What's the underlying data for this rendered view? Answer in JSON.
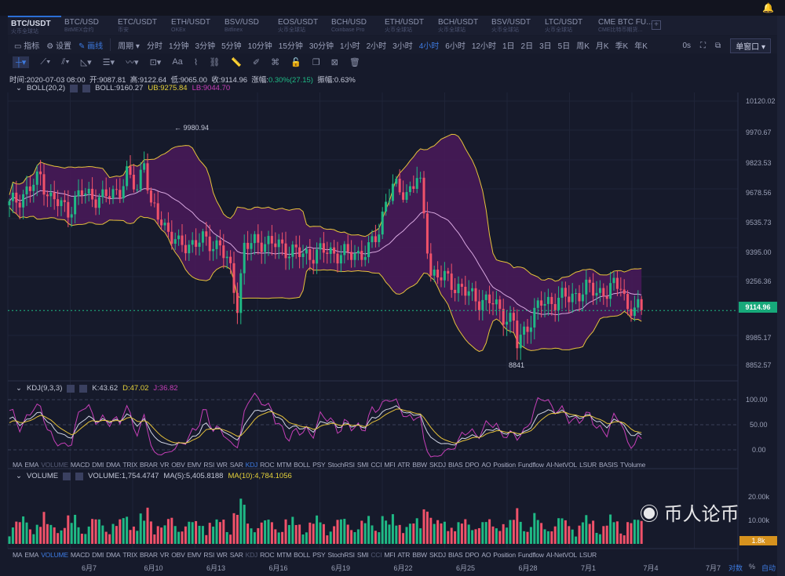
{
  "tabs": [
    {
      "name": "BTC/USDT",
      "source": "火币全球站"
    },
    {
      "name": "BTC/USD",
      "source": "BitMEX合约"
    },
    {
      "name": "ETC/USDT",
      "source": "币安"
    },
    {
      "name": "ETH/USDT",
      "source": "OKEx"
    },
    {
      "name": "BSV/USD",
      "source": "Bitfinex"
    },
    {
      "name": "EOS/USDT",
      "source": "火币全球站"
    },
    {
      "name": "BCH/USD",
      "source": "Coinbase Pro"
    },
    {
      "name": "ETH/USDT",
      "source": "火币全球站"
    },
    {
      "name": "BCH/USDT",
      "source": "火币全球站"
    },
    {
      "name": "BSV/USDT",
      "source": "火币全球站"
    },
    {
      "name": "LTC/USDT",
      "source": "火币全球站"
    },
    {
      "name": "CME BTC FU...",
      "source": "CME比特币期货..."
    }
  ],
  "toolbar": {
    "indicator": "指标",
    "settings": "设置",
    "draw": "画线",
    "period": "周期",
    "periods": [
      "分时",
      "1分钟",
      "3分钟",
      "5分钟",
      "10分钟",
      "15分钟",
      "30分钟",
      "1小时",
      "2小时",
      "3小时",
      "4小时",
      "6小时",
      "12小时",
      "1日",
      "2日",
      "3日",
      "5日",
      "周K",
      "月K",
      "季K",
      "年K"
    ],
    "active_period": "4小时",
    "countdown": "0s",
    "window": "单窗口"
  },
  "info": {
    "time": "时间:2020-07-03 08:00",
    "open": "开:9087.81",
    "high": "高:9122.64",
    "low": "低:9065.00",
    "close": "收:9114.96",
    "change_label": "涨幅:",
    "change": "0.30%(27.15)",
    "amplitude": "振幅:0.63%"
  },
  "boll": {
    "name": "BOLL(20,2)",
    "mid": "BOLL:9160.27",
    "ub": "UB:9275.84",
    "lb": "LB:9044.70"
  },
  "kdj": {
    "name": "KDJ(9,3,3)",
    "k": "K:43.62",
    "d": "D:47.02",
    "j": "J:36.82",
    "ticks": [
      "100.00",
      "50.00",
      "0.00"
    ]
  },
  "volume": {
    "name": "VOLUME",
    "vol": "VOLUME:1,754.4747",
    "ma5": "MA(5):5,405.8188",
    "ma10": "MA(10):4,784.1056",
    "ticks": [
      "20.00k",
      "10.00k"
    ],
    "last": "1.8k"
  },
  "price_axis": [
    "10120.02",
    "9970.67",
    "9823.53",
    "9678.56",
    "9535.73",
    "9395.00",
    "9256.36",
    "9114.96",
    "8985.17",
    "8852.57"
  ],
  "last_price": "9114.96",
  "high_mark": "← 9980.94",
  "low_mark": "8841",
  "indicators_top": [
    "MA",
    "EMA",
    "VOLUME",
    "MACD",
    "DMI",
    "DMA",
    "TRIX",
    "BRAR",
    "VR",
    "OBV",
    "EMV",
    "RSI",
    "WR",
    "SAR",
    "KDJ",
    "ROC",
    "MTM",
    "BOLL",
    "PSY",
    "StochRSI",
    "SMI",
    "CCI",
    "MFI",
    "ATR",
    "BBW",
    "SKDJ",
    "BIAS",
    "DPO",
    "AO",
    "Position",
    "Fundflow",
    "AI-NetVOL",
    "LSUR",
    "BASIS",
    "TVolume"
  ],
  "indicators_bottom": [
    "MA",
    "EMA",
    "VOLUME",
    "MACD",
    "DMI",
    "DMA",
    "TRIX",
    "BRAR",
    "VR",
    "OBV",
    "EMV",
    "RSI",
    "WR",
    "SAR",
    "KDJ",
    "ROC",
    "MTM",
    "BOLL",
    "PSY",
    "StochRSI",
    "SMI",
    "CCI",
    "MFI",
    "ATR",
    "BBW",
    "SKDJ",
    "BIAS",
    "DPO",
    "AO",
    "Position",
    "Fundflow",
    "AI-NetVOL",
    "LSUR"
  ],
  "dates": [
    "6月7",
    "6月10",
    "6月13",
    "6月16",
    "6月19",
    "6月22",
    "6月25",
    "6月28",
    "7月1",
    "7月4",
    "7月7"
  ],
  "scale": {
    "log": "对数",
    "pct": "%",
    "auto": "自动"
  },
  "watermark": "币人论币",
  "colors": {
    "up": "#1fb985",
    "down": "#f0526a",
    "boll_fill": "#4a1a5a",
    "ub": "#e6c23a",
    "mid": "#d8a8e0",
    "accent": "#3d7ae0"
  },
  "chart_data": {
    "type": "candlestick",
    "interval": "4h",
    "count": 184,
    "keypoints": [
      [
        0,
        9620
      ],
      [
        6,
        9700
      ],
      [
        9,
        9760
      ],
      [
        12,
        9650
      ],
      [
        17,
        9600
      ],
      [
        21,
        9680
      ],
      [
        27,
        9650
      ],
      [
        32,
        9700
      ],
      [
        34,
        9760
      ],
      [
        37,
        9700
      ],
      [
        39,
        9850
      ],
      [
        41,
        9600
      ],
      [
        44,
        9550
      ],
      [
        49,
        9420
      ],
      [
        55,
        9450
      ],
      [
        61,
        9430
      ],
      [
        64,
        9300
      ],
      [
        66,
        9150
      ],
      [
        68,
        9420
      ],
      [
        73,
        9450
      ],
      [
        79,
        9420
      ],
      [
        85,
        9380
      ],
      [
        92,
        9400
      ],
      [
        98,
        9380
      ],
      [
        104,
        9400
      ],
      [
        107,
        9500
      ],
      [
        109,
        9650
      ],
      [
        111,
        9700
      ],
      [
        115,
        9680
      ],
      [
        118,
        9750
      ],
      [
        119,
        9700
      ],
      [
        122,
        9300
      ],
      [
        128,
        9250
      ],
      [
        134,
        9180
      ],
      [
        140,
        9150
      ],
      [
        146,
        9050
      ],
      [
        147,
        8950
      ],
      [
        150,
        9050
      ],
      [
        154,
        9150
      ],
      [
        162,
        9180
      ],
      [
        168,
        9220
      ],
      [
        173,
        9200
      ],
      [
        177,
        9250
      ],
      [
        179,
        9120
      ],
      [
        183,
        9115
      ]
    ],
    "price_range": [
      8852.57,
      10120.02
    ]
  }
}
